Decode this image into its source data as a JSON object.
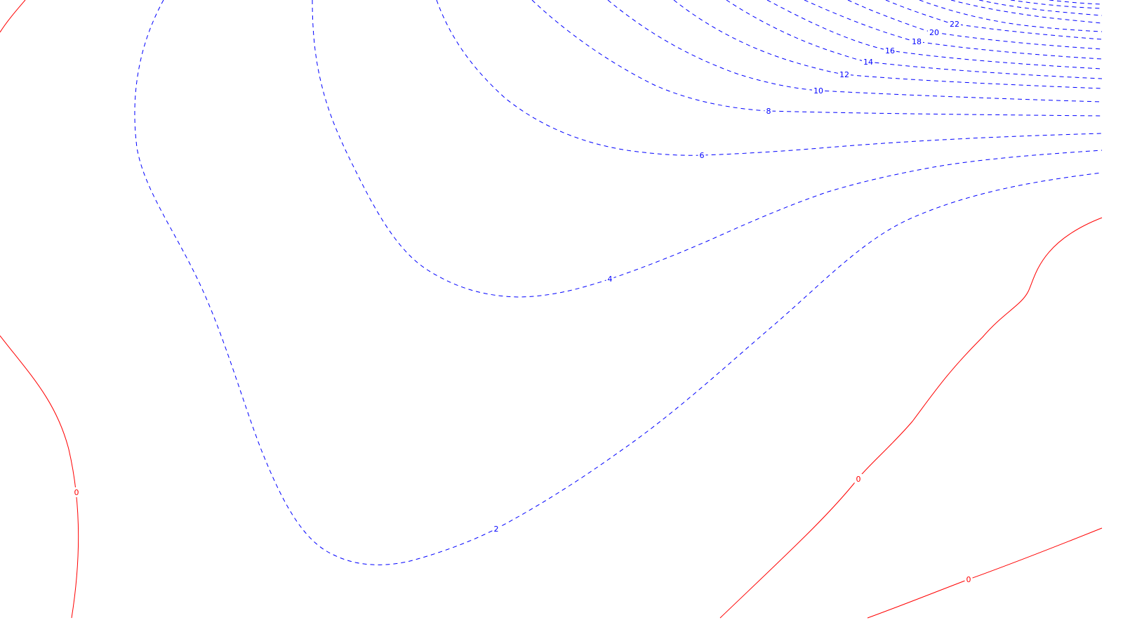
{
  "chart_data": {
    "type": "contour",
    "title": "",
    "xlabel": "",
    "ylabel": "",
    "grid": false,
    "legend": "none",
    "colors": {
      "positive": "#0000ff",
      "zero": "#ff0000"
    },
    "line_styles": {
      "positive": "dashed",
      "zero": "solid"
    },
    "levels": [
      {
        "level": 0,
        "label": "0",
        "color": "#ff0000",
        "style": "solid"
      },
      {
        "level": 2,
        "label": "2",
        "color": "#0000ff",
        "style": "dashed"
      },
      {
        "level": 4,
        "label": "4",
        "color": "#0000ff",
        "style": "dashed"
      },
      {
        "level": 6,
        "label": "6",
        "color": "#0000ff",
        "style": "dashed"
      },
      {
        "level": 8,
        "label": "8",
        "color": "#0000ff",
        "style": "dashed"
      },
      {
        "level": 10,
        "label": "10",
        "color": "#0000ff",
        "style": "dashed"
      },
      {
        "level": 12,
        "label": "12",
        "color": "#0000ff",
        "style": "dashed"
      },
      {
        "level": 14,
        "label": "14",
        "color": "#0000ff",
        "style": "dashed"
      },
      {
        "level": 16,
        "label": "16",
        "color": "#0000ff",
        "style": "dashed"
      },
      {
        "level": 18,
        "label": "18",
        "color": "#0000ff",
        "style": "dashed"
      },
      {
        "level": 20,
        "label": "20",
        "color": "#0000ff",
        "style": "dashed"
      },
      {
        "level": 22,
        "label": "22",
        "color": "#0000ff",
        "style": "dashed"
      }
    ]
  }
}
